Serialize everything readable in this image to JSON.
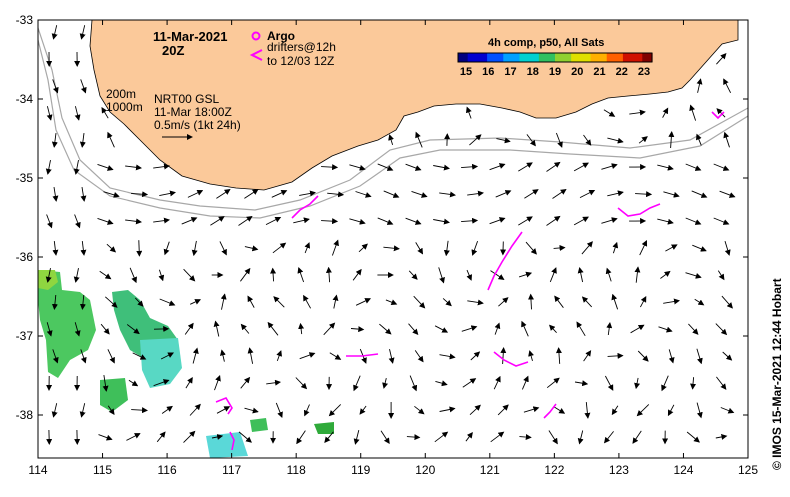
{
  "map": {
    "date_title": "11-Mar-2021",
    "time_title": "20Z",
    "argo_label": "Argo",
    "drifters_label": "drifters@12h",
    "drifters_to_label": "to 12/03 12Z",
    "depth_labels": [
      "200m",
      "1000m"
    ],
    "product_label": "NRT00 GSL",
    "product_time": "11-Mar 18:00Z",
    "scale_label": "0.5m/s (1kt 24h)",
    "colorbar_title": "4h comp, p50, All Sats",
    "colorbar_ticks": [
      "15",
      "16",
      "17",
      "18",
      "19",
      "20",
      "21",
      "22",
      "23"
    ],
    "credit": "© IMOS 15-Mar-2021 12:44 Hobart",
    "x_ticks": [
      "114",
      "115",
      "116",
      "117",
      "118",
      "119",
      "120",
      "121",
      "122",
      "123",
      "124",
      "125"
    ],
    "y_ticks": [
      "-33",
      "-34",
      "-35",
      "-36",
      "-37",
      "-38"
    ]
  },
  "colors": {
    "land": "#fbc99a",
    "drifter": "#ff00ff",
    "isobath": "#a8a8a8",
    "sst_green": "#3fbf5a",
    "sst_cyan": "#3fd0c0"
  }
}
